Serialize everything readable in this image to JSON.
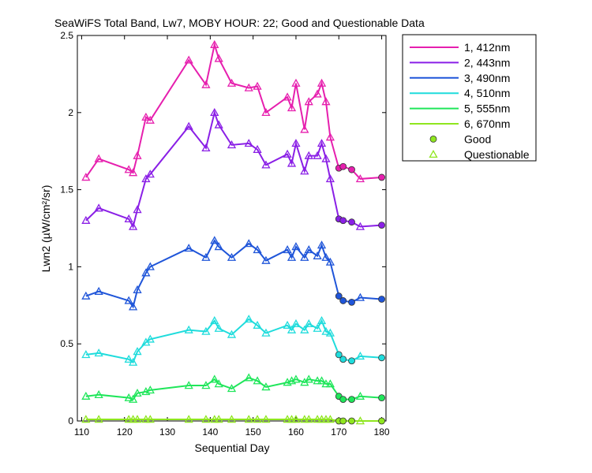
{
  "chart_data": {
    "type": "line",
    "title": "SeaWiFS Total Band, Lw7, MOBY HOUR: 22;  Good and Questionable Data",
    "xlabel": "Sequential Day",
    "ylabel": "Lwn2 (µW/cm²/sr)",
    "xlim": [
      109,
      181
    ],
    "ylim": [
      0,
      2.5
    ],
    "xticks": [
      110,
      120,
      130,
      140,
      150,
      160,
      170,
      180
    ],
    "yticks": [
      0,
      0.5,
      1,
      1.5,
      2,
      2.5
    ],
    "ytick_labels": [
      "0",
      "0.5",
      "1",
      "1.5",
      "2",
      "2.5"
    ],
    "grid": false,
    "legend_position": "outside-top-right",
    "x": [
      111,
      114,
      121,
      122,
      123,
      125,
      126,
      135,
      139,
      141,
      142,
      145,
      149,
      151,
      153,
      158,
      159,
      160,
      162,
      163,
      165,
      166,
      167,
      168,
      170,
      171,
      173,
      175,
      180
    ],
    "quality": [
      "Q",
      "Q",
      "Q",
      "Q",
      "Q",
      "Q",
      "Q",
      "Q",
      "Q",
      "Q",
      "Q",
      "Q",
      "Q",
      "Q",
      "Q",
      "Q",
      "Q",
      "Q",
      "Q",
      "Q",
      "Q",
      "Q",
      "Q",
      "Q",
      "G",
      "G",
      "G",
      "Q",
      "G"
    ],
    "series": [
      {
        "name": "1, 412nm",
        "color": "#e61fae",
        "values": [
          1.58,
          1.7,
          1.63,
          1.61,
          1.72,
          1.97,
          1.95,
          2.34,
          2.18,
          2.44,
          2.35,
          2.19,
          2.16,
          2.17,
          2.0,
          2.1,
          2.03,
          2.19,
          1.89,
          2.07,
          2.12,
          2.19,
          2.07,
          1.84,
          1.64,
          1.65,
          1.63,
          1.57,
          1.58
        ]
      },
      {
        "name": "2, 443nm",
        "color": "#8a1fe6",
        "values": [
          1.3,
          1.38,
          1.31,
          1.26,
          1.37,
          1.57,
          1.6,
          1.91,
          1.77,
          2.0,
          1.92,
          1.79,
          1.8,
          1.76,
          1.66,
          1.73,
          1.67,
          1.8,
          1.62,
          1.72,
          1.72,
          1.8,
          1.7,
          1.57,
          1.31,
          1.3,
          1.29,
          1.26,
          1.27
        ]
      },
      {
        "name": "3, 490nm",
        "color": "#1f55d9",
        "values": [
          0.81,
          0.84,
          0.78,
          0.74,
          0.85,
          0.96,
          1.0,
          1.12,
          1.06,
          1.17,
          1.13,
          1.06,
          1.15,
          1.11,
          1.04,
          1.11,
          1.06,
          1.13,
          1.06,
          1.11,
          1.07,
          1.14,
          1.06,
          1.03,
          0.81,
          0.78,
          0.77,
          0.8,
          0.79
        ]
      },
      {
        "name": "4, 510nm",
        "color": "#1fdcdc",
        "values": [
          0.43,
          0.44,
          0.4,
          0.38,
          0.45,
          0.51,
          0.53,
          0.59,
          0.58,
          0.65,
          0.6,
          0.56,
          0.66,
          0.62,
          0.57,
          0.62,
          0.59,
          0.63,
          0.59,
          0.63,
          0.6,
          0.65,
          0.58,
          0.57,
          0.43,
          0.4,
          0.39,
          0.42,
          0.41
        ]
      },
      {
        "name": "5, 555nm",
        "color": "#1fe65a",
        "values": [
          0.16,
          0.17,
          0.15,
          0.14,
          0.18,
          0.19,
          0.2,
          0.23,
          0.23,
          0.27,
          0.24,
          0.21,
          0.28,
          0.26,
          0.22,
          0.25,
          0.26,
          0.27,
          0.25,
          0.27,
          0.26,
          0.26,
          0.24,
          0.24,
          0.16,
          0.14,
          0.14,
          0.16,
          0.15
        ]
      },
      {
        "name": "6, 670nm",
        "color": "#8fe61f",
        "values": [
          0.01,
          0.01,
          0.01,
          0.01,
          0.01,
          0.01,
          0.01,
          0.01,
          0.01,
          0.01,
          0.01,
          0.01,
          0.01,
          0.01,
          0.01,
          0.01,
          0.01,
          0.01,
          0.01,
          0.01,
          0.01,
          0.01,
          0.01,
          0.01,
          0.0,
          0.0,
          0.0,
          0.0,
          0.0
        ]
      }
    ],
    "markers": [
      {
        "label": "Good",
        "symbol": "circle",
        "color": "#8fe61f"
      },
      {
        "label": "Questionable",
        "symbol": "triangle",
        "color": "#8fe61f"
      }
    ]
  }
}
